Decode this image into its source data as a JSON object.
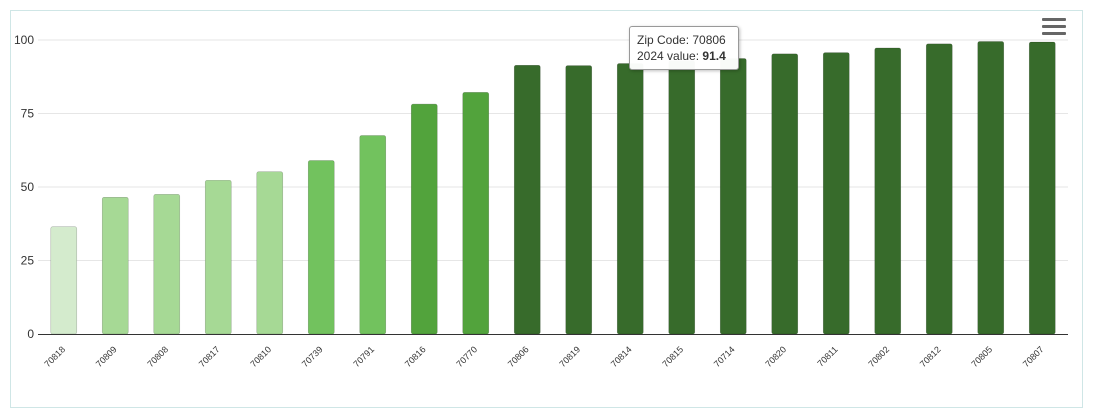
{
  "colors": {
    "very_light_green": "#d4ebcd",
    "light_green": "#a6d995",
    "medium_green": "#72c25e",
    "green": "#52a33c",
    "dark_green": "#376b2b",
    "grid": "#e6e6e6",
    "axis": "#333333",
    "label": "#333333"
  },
  "menu": {
    "icon": "hamburger-menu-icon"
  },
  "tooltip": {
    "line1_label": "Zip Code: ",
    "line1_value": "70806",
    "line2_label": "2024 value: ",
    "line2_value": "91.4"
  },
  "chart_data": {
    "type": "bar",
    "title": "",
    "xlabel": "",
    "ylabel": "",
    "ylim": [
      0,
      100
    ],
    "yticks": [
      0,
      25,
      50,
      75,
      100
    ],
    "grid": true,
    "categories": [
      "70818",
      "70809",
      "70808",
      "70817",
      "70810",
      "70739",
      "70791",
      "70816",
      "70770",
      "70806",
      "70819",
      "70814",
      "70815",
      "70714",
      "70820",
      "70811",
      "70802",
      "70812",
      "70805",
      "70807"
    ],
    "values": [
      36.5,
      46.5,
      47.5,
      52.3,
      55.2,
      59.0,
      67.5,
      78.2,
      82.2,
      91.4,
      91.3,
      92.0,
      93.0,
      93.7,
      95.3,
      95.7,
      97.3,
      98.7,
      99.5,
      99.3
    ],
    "bar_colors": [
      "#d4ebcd",
      "#a6d995",
      "#a6d995",
      "#a6d995",
      "#a6d995",
      "#72c25e",
      "#72c25e",
      "#52a33c",
      "#52a33c",
      "#376b2b",
      "#376b2b",
      "#376b2b",
      "#376b2b",
      "#376b2b",
      "#376b2b",
      "#376b2b",
      "#376b2b",
      "#376b2b",
      "#376b2b",
      "#376b2b"
    ]
  }
}
